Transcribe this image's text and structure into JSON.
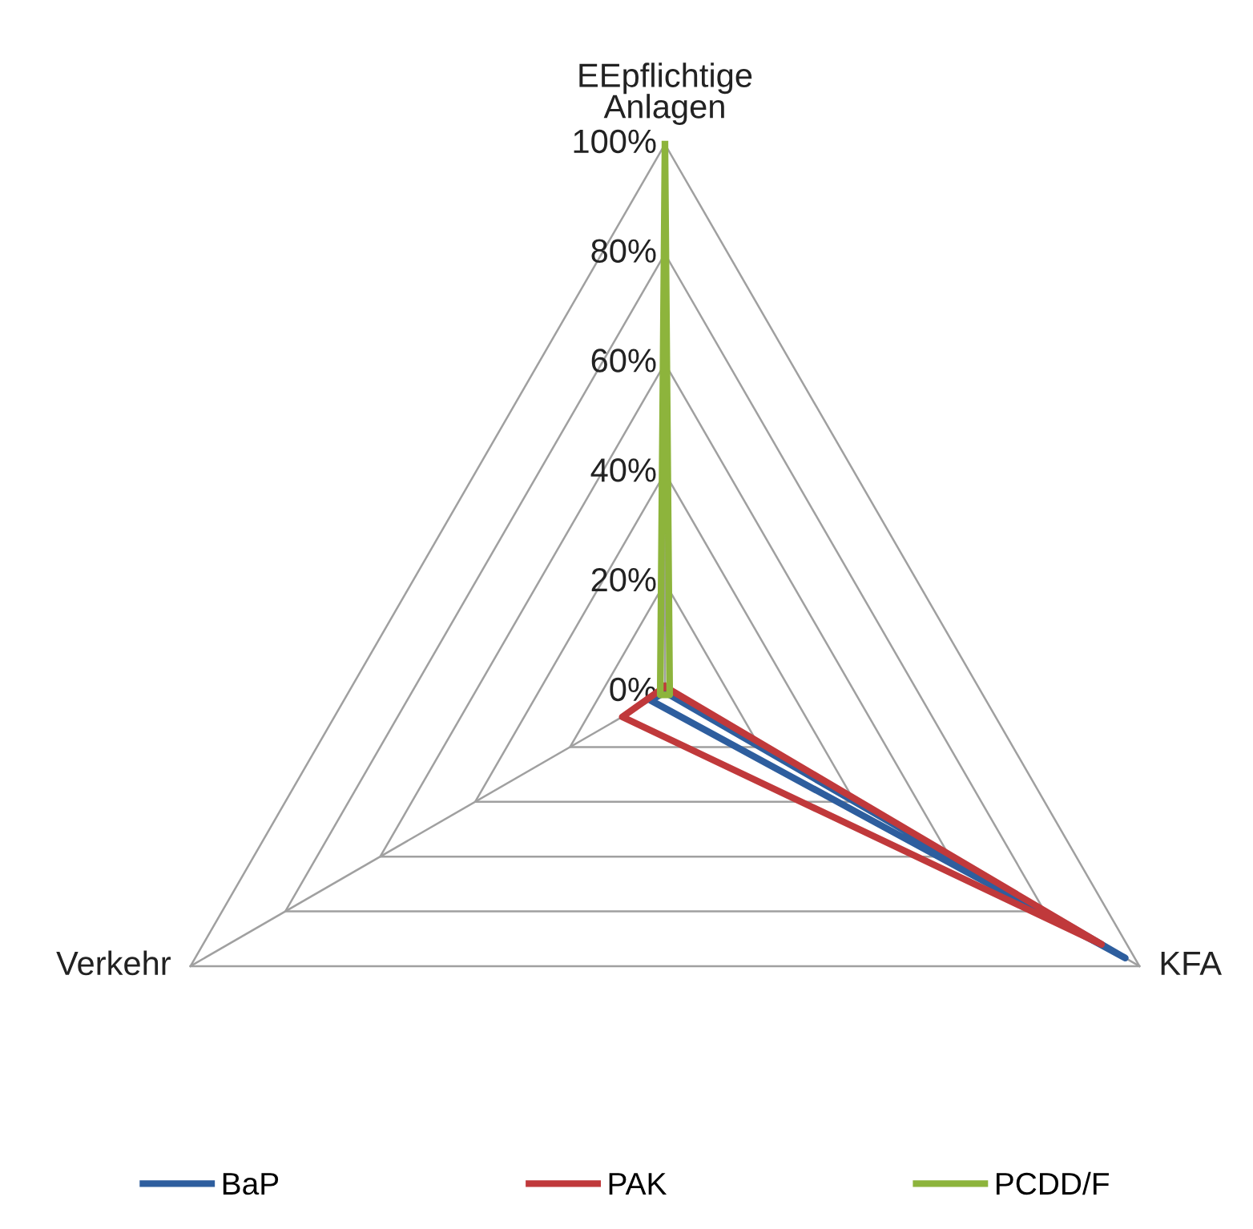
{
  "chart_data": {
    "type": "radar",
    "categories": [
      "EEpflichtige\nAnlagen",
      "KFA",
      "Verkehr"
    ],
    "series": [
      {
        "name": "BaP",
        "color": "#2e5e9e",
        "values": [
          0,
          97,
          3
        ]
      },
      {
        "name": "PAK",
        "color": "#c0393b",
        "values": [
          1,
          92,
          9
        ]
      },
      {
        "name": "PCDD/F",
        "color": "#8db43c",
        "values": [
          100,
          1,
          1
        ]
      }
    ],
    "ylim": [
      0,
      100
    ],
    "yticks": [
      {
        "value": 0,
        "label": "0%"
      },
      {
        "value": 20,
        "label": "20%"
      },
      {
        "value": 40,
        "label": "40%"
      },
      {
        "value": 60,
        "label": "60%"
      },
      {
        "value": 80,
        "label": "80%"
      },
      {
        "value": 100,
        "label": "100%"
      }
    ],
    "grid": true,
    "legend": "bottom",
    "marker": "none"
  }
}
